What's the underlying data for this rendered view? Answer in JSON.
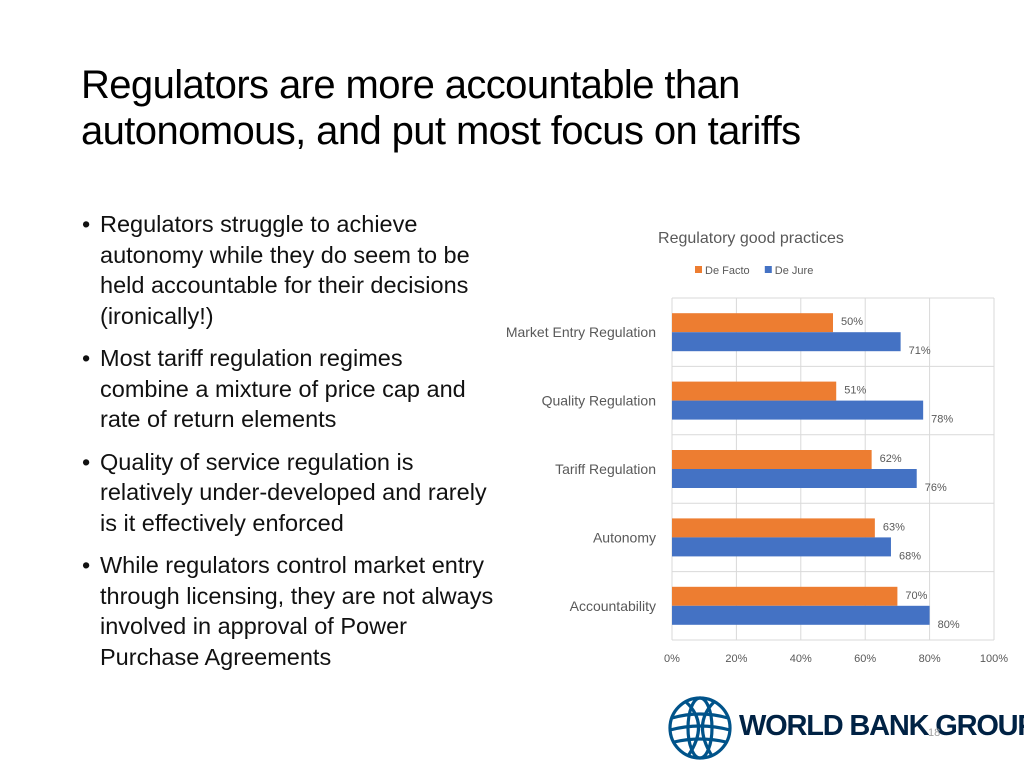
{
  "slide": {
    "title_line1": "Regulators are more accountable than",
    "title_line2": "autonomous, and put most focus on tariffs",
    "bullets": [
      "Regulators struggle to achieve autonomy while they do seem to be held accountable for their decisions (ironically!)",
      "Most tariff regulation regimes combine a mixture of price cap and rate of return elements",
      "Quality of service regulation is relatively under-developed and rarely is it effectively enforced",
      "While regulators control market entry through licensing, they are not always involved in approval of Power Purchase Agreements"
    ],
    "bullet_glyph": "•",
    "logo_text": "WORLD BANK GROUP",
    "page_number": "18"
  },
  "chart_data": {
    "type": "bar",
    "orientation": "horizontal",
    "title": "Regulatory good practices",
    "categories": [
      "Market Entry Regulation",
      "Quality Regulation",
      "Tariff Regulation",
      "Autonomy",
      "Accountability"
    ],
    "series": [
      {
        "name": "De Facto",
        "color": "#ED7D31",
        "values": [
          50,
          51,
          62,
          63,
          70
        ]
      },
      {
        "name": "De Jure",
        "color": "#4472C4",
        "values": [
          71,
          78,
          76,
          68,
          80
        ]
      }
    ],
    "xlim": [
      0,
      100
    ],
    "xticks": [
      "0%",
      "20%",
      "40%",
      "60%",
      "80%",
      "100%"
    ],
    "value_suffix": "%",
    "legend_position": "top",
    "grid": true
  },
  "colors": {
    "logo": "#002244",
    "gridline": "#d9d9d9",
    "chart_text": "#595959"
  }
}
